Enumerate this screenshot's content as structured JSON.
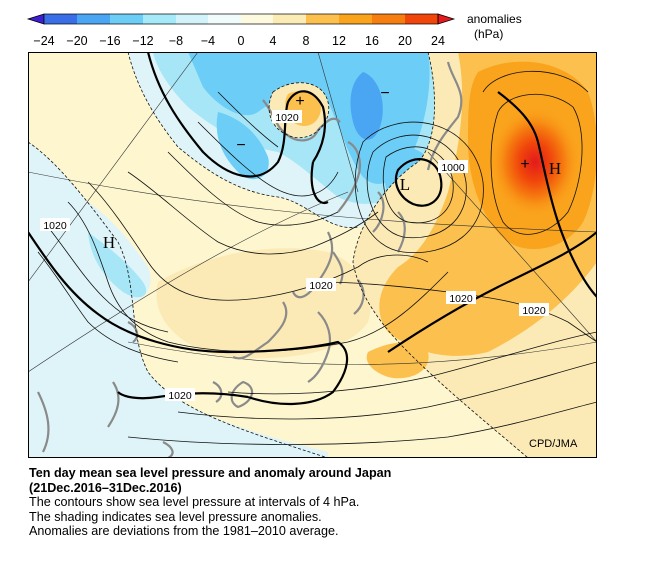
{
  "legend": {
    "label_line1": "anomalies",
    "label_line2": "(hPa)",
    "ticks": [
      "−24",
      "−20",
      "−16",
      "−12",
      "−8",
      "−4",
      "0",
      "4",
      "8",
      "12",
      "16",
      "20",
      "24"
    ],
    "colors": [
      "#3c1fd0",
      "#3a6ee6",
      "#4aa6f2",
      "#6ccdf6",
      "#a6eaf9",
      "#dff6fb",
      "#fdf8d0",
      "#fbe6a8",
      "#fcc04e",
      "#faa31c",
      "#f67d10",
      "#f0460b",
      "#e41a1c"
    ]
  },
  "map": {
    "isobar_labels": [
      "1020",
      "1000",
      "1020",
      "1020",
      "1020",
      "1020"
    ],
    "pressure_systems": [
      {
        "symbol": "L",
        "kind": "low"
      },
      {
        "symbol": "H",
        "kind": "high"
      },
      {
        "symbol": "H",
        "kind": "high"
      }
    ],
    "anomaly_marks": [
      {
        "symbol": "+",
        "meaning": "positive-anomaly-center"
      },
      {
        "symbol": "+",
        "meaning": "positive-anomaly-center"
      },
      {
        "symbol": "−",
        "meaning": "negative-anomaly-center"
      },
      {
        "symbol": "−",
        "meaning": "negative-anomaly-center"
      }
    ],
    "credit": "CPD/JMA"
  },
  "caption": {
    "title_line1": "Ten day mean sea level pressure and anomaly around Japan",
    "title_line2": "(21Dec.2016–31Dec.2016)",
    "line1": "The contours show sea level pressure at intervals of 4 hPa.",
    "line2": "The shading indicates sea level pressure anomalies.",
    "line3": "Anomalies are deviations from the 1981–2010 average."
  }
}
